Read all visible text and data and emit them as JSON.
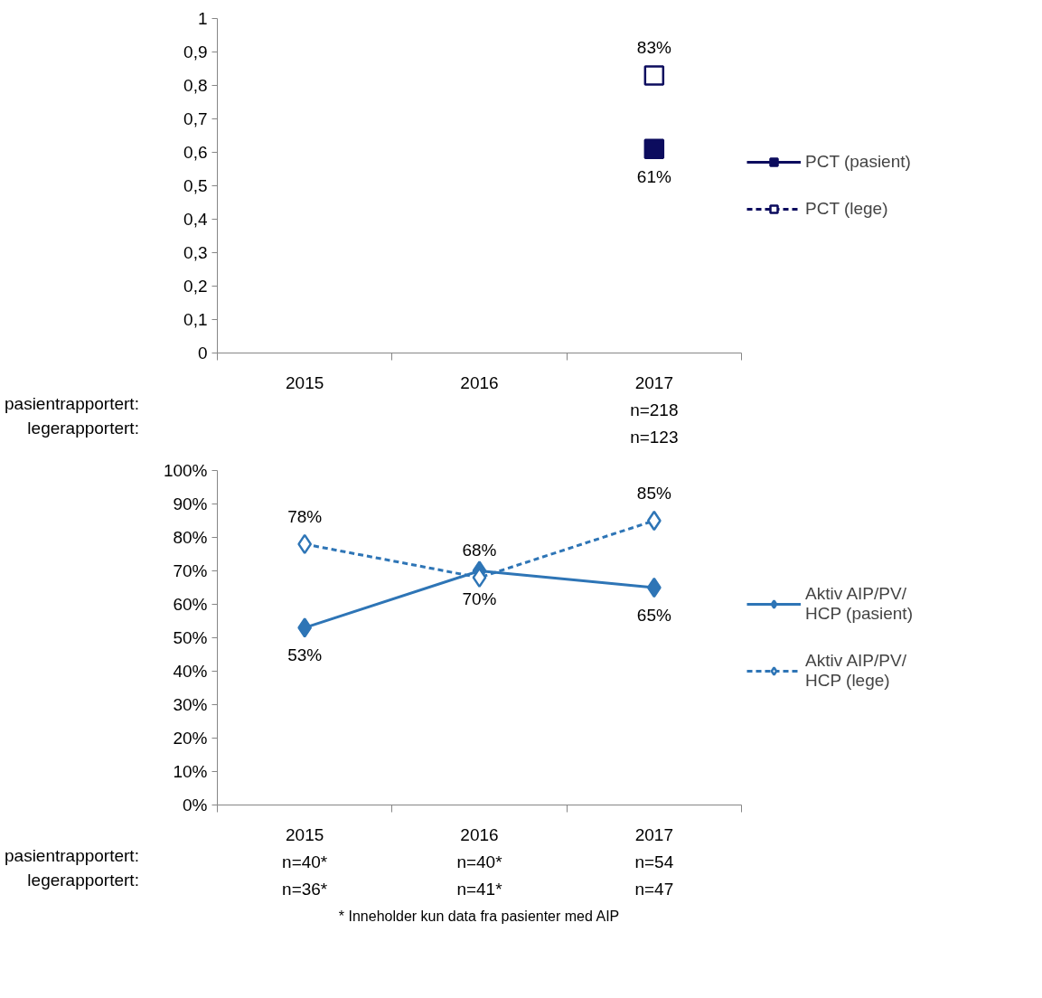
{
  "chart_data": [
    {
      "type": "line",
      "categories": [
        "2015",
        "2016",
        "2017\nn=218\nn=123"
      ],
      "ylim": [
        0,
        1
      ],
      "yticks": [
        0,
        {
          "value": 0.1,
          "label": "0,1"
        },
        {
          "value": 0.2,
          "label": "0,2"
        },
        {
          "value": 0.3,
          "label": "0,3"
        },
        {
          "value": 0.4,
          "label": "0,4"
        },
        {
          "value": 0.5,
          "label": "0,5"
        },
        {
          "value": 0.6,
          "label": "0,6"
        },
        {
          "value": 0.7,
          "label": "0,7"
        },
        {
          "value": 0.8,
          "label": "0,8"
        },
        {
          "value": 0.9,
          "label": "0,9"
        },
        1
      ],
      "series": [
        {
          "name": "PCT (pasient)",
          "color": "#0c0c5e",
          "values": [
            null,
            null,
            0.61
          ],
          "value_labels": [
            null,
            null,
            "61%"
          ],
          "line_style": "solid"
        },
        {
          "name": "PCT (lege)",
          "color": "#0c0c5e",
          "values": [
            null,
            null,
            0.83
          ],
          "value_labels": [
            null,
            null,
            "83%"
          ],
          "line_style": "dashed"
        }
      ],
      "marker": "square",
      "legend": "right",
      "grid": false,
      "annotations": [
        "pasientrapportert:",
        "legerapportert:"
      ]
    },
    {
      "type": "line",
      "categories": [
        "2015\nn=40*\nn=36*",
        "2016\nn=40*\nn=41*",
        "2017\nn=54\nn=47"
      ],
      "ylim": [
        0,
        100
      ],
      "yticks": [
        {
          "value": 0,
          "label": "0%"
        },
        {
          "value": 10,
          "label": "10%"
        },
        {
          "value": 20,
          "label": "20%"
        },
        {
          "value": 30,
          "label": "30%"
        },
        {
          "value": 40,
          "label": "40%"
        },
        {
          "value": 50,
          "label": "50%"
        },
        {
          "value": 60,
          "label": "60%"
        },
        {
          "value": 70,
          "label": "70%"
        },
        {
          "value": 80,
          "label": "80%"
        },
        {
          "value": 90,
          "label": "90%"
        },
        {
          "value": 100,
          "label": "100%"
        }
      ],
      "series": [
        {
          "name": "Aktiv AIP/PV/\nHCP (pasient)",
          "color": "#2e75b6",
          "values": [
            53,
            70,
            65
          ],
          "value_labels": [
            "53%",
            "70%",
            "65%"
          ],
          "line_style": "solid"
        },
        {
          "name": "Aktiv AIP/PV/\nHCP (lege)",
          "color": "#2e75b6",
          "values": [
            78,
            68,
            85
          ],
          "value_labels": [
            "78%",
            "68%",
            "85%"
          ],
          "line_style": "dashed"
        }
      ],
      "marker": "diamond",
      "legend": "right",
      "grid": false,
      "annotations": [
        "pasientrapportert:",
        "legerapportert:",
        "* Inneholder kun data fra pasienter med AIP"
      ]
    }
  ]
}
